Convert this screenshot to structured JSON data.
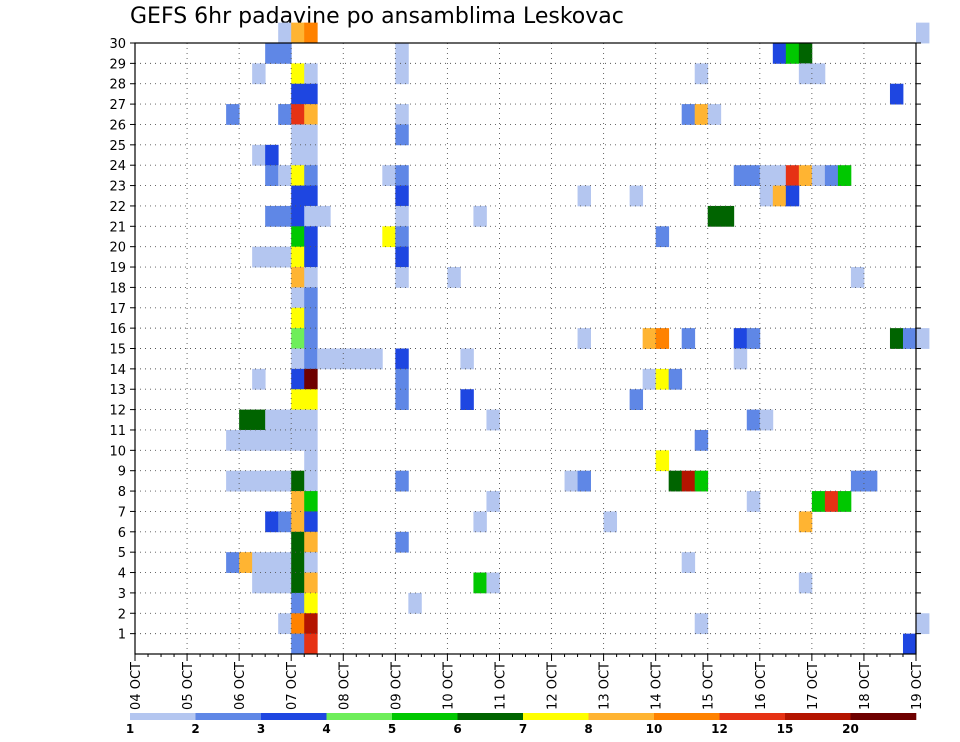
{
  "chart_data": {
    "type": "heatmap",
    "title": "GEFS 6hr padavine po ansamblima Leskovac",
    "xlabel": "",
    "ylabel": "",
    "x_ticks": [
      "04 OCT",
      "05 OCT",
      "06 OCT",
      "07 OCT",
      "08 OCT",
      "09 OCT",
      "10 OCT",
      "11 OCT",
      "12 OCT",
      "13 OCT",
      "14 OCT",
      "15 OCT",
      "16 OCT",
      "17 OCT",
      "18 OCT",
      "19 OCT"
    ],
    "x_range": [
      "04 OCT 00Z",
      "19 OCT 00Z"
    ],
    "x_step": "6hr",
    "y_ticks": [
      1,
      2,
      3,
      4,
      5,
      6,
      7,
      8,
      9,
      10,
      11,
      12,
      13,
      14,
      15,
      16,
      17,
      18,
      19,
      20,
      21,
      22,
      23,
      24,
      25,
      26,
      27,
      28,
      29,
      30
    ],
    "y_range": [
      0,
      30
    ],
    "grid": true,
    "legend": {
      "position": "bottom",
      "labels": [
        "1",
        "2",
        "3",
        "4",
        "5",
        "6",
        "7",
        "8",
        "10",
        "12",
        "15",
        "20"
      ],
      "colors": [
        "#b4c6f0",
        "#5f87e6",
        "#1e46e1",
        "#6eee5a",
        "#00c800",
        "#006400",
        "#ffff00",
        "#ffb432",
        "#ff8200",
        "#e63214",
        "#b41400",
        "#6e0000"
      ]
    },
    "color_bins_mm": [
      1,
      2,
      3,
      4,
      5,
      6,
      7,
      8,
      10,
      12,
      15,
      20
    ],
    "values": [
      [
        30,
        11,
        1
      ],
      [
        30,
        12,
        8
      ],
      [
        30,
        13,
        10
      ],
      [
        30,
        60,
        1
      ],
      [
        29,
        10,
        2
      ],
      [
        29,
        11,
        2
      ],
      [
        29,
        20,
        1
      ],
      [
        29,
        49,
        3
      ],
      [
        29,
        50,
        5
      ],
      [
        29,
        51,
        6
      ],
      [
        28,
        9,
        1
      ],
      [
        28,
        12,
        7
      ],
      [
        28,
        13,
        1
      ],
      [
        28,
        20,
        1
      ],
      [
        28,
        43,
        1
      ],
      [
        28,
        51,
        1
      ],
      [
        28,
        52,
        1
      ],
      [
        27,
        12,
        3
      ],
      [
        27,
        13,
        3
      ],
      [
        27,
        58,
        3
      ],
      [
        26,
        7,
        2
      ],
      [
        26,
        11,
        2
      ],
      [
        26,
        12,
        12
      ],
      [
        26,
        13,
        9
      ],
      [
        26,
        20,
        1
      ],
      [
        26,
        42,
        2
      ],
      [
        26,
        43,
        8
      ],
      [
        26,
        44,
        1
      ],
      [
        25,
        12,
        1
      ],
      [
        25,
        13,
        1
      ],
      [
        25,
        20,
        2
      ],
      [
        24,
        9,
        1
      ],
      [
        24,
        10,
        3
      ],
      [
        24,
        12,
        1
      ],
      [
        24,
        13,
        1
      ],
      [
        23,
        10,
        2
      ],
      [
        23,
        11,
        1
      ],
      [
        23,
        12,
        7
      ],
      [
        23,
        13,
        2
      ],
      [
        23,
        19,
        1
      ],
      [
        23,
        20,
        2
      ],
      [
        23,
        46,
        2
      ],
      [
        23,
        47,
        2
      ],
      [
        23,
        48,
        1
      ],
      [
        23,
        49,
        1
      ],
      [
        23,
        50,
        12
      ],
      [
        23,
        51,
        9
      ],
      [
        23,
        52,
        1
      ],
      [
        23,
        53,
        2
      ],
      [
        23,
        54,
        5
      ],
      [
        22,
        12,
        3
      ],
      [
        22,
        13,
        3
      ],
      [
        22,
        20,
        3
      ],
      [
        22,
        34,
        1
      ],
      [
        22,
        38,
        1
      ],
      [
        22,
        48,
        1
      ],
      [
        22,
        49,
        9
      ],
      [
        22,
        50,
        3
      ],
      [
        21,
        10,
        2
      ],
      [
        21,
        11,
        2
      ],
      [
        21,
        12,
        3
      ],
      [
        21,
        13,
        1
      ],
      [
        21,
        14,
        1
      ],
      [
        21,
        20,
        1
      ],
      [
        21,
        26,
        1
      ],
      [
        21,
        44,
        6
      ],
      [
        21,
        45,
        6
      ],
      [
        20,
        12,
        5
      ],
      [
        20,
        13,
        3
      ],
      [
        20,
        19,
        7
      ],
      [
        20,
        20,
        2
      ],
      [
        20,
        40,
        2
      ],
      [
        19,
        9,
        1
      ],
      [
        19,
        10,
        1
      ],
      [
        19,
        11,
        1
      ],
      [
        19,
        12,
        7
      ],
      [
        19,
        13,
        3
      ],
      [
        19,
        20,
        3
      ],
      [
        18,
        12,
        8
      ],
      [
        18,
        13,
        1
      ],
      [
        18,
        20,
        1
      ],
      [
        18,
        24,
        1
      ],
      [
        18,
        55,
        1
      ],
      [
        17,
        12,
        1
      ],
      [
        17,
        13,
        2
      ],
      [
        16,
        12,
        7
      ],
      [
        16,
        13,
        2
      ],
      [
        15,
        12,
        4
      ],
      [
        15,
        13,
        2
      ],
      [
        15,
        34,
        1
      ],
      [
        15,
        39,
        9
      ],
      [
        15,
        40,
        11
      ],
      [
        15,
        42,
        2
      ],
      [
        15,
        46,
        3
      ],
      [
        15,
        47,
        2
      ],
      [
        15,
        58,
        6
      ],
      [
        15,
        59,
        2
      ],
      [
        15,
        60,
        1
      ],
      [
        14,
        12,
        1
      ],
      [
        14,
        13,
        2
      ],
      [
        14,
        14,
        1
      ],
      [
        14,
        15,
        1
      ],
      [
        14,
        16,
        1
      ],
      [
        14,
        17,
        1
      ],
      [
        14,
        18,
        1
      ],
      [
        14,
        20,
        3
      ],
      [
        14,
        25,
        1
      ],
      [
        14,
        46,
        1
      ],
      [
        13,
        9,
        1
      ],
      [
        13,
        12,
        3
      ],
      [
        13,
        13,
        20
      ],
      [
        13,
        20,
        2
      ],
      [
        13,
        39,
        1
      ],
      [
        13,
        40,
        7
      ],
      [
        13,
        41,
        2
      ],
      [
        12,
        12,
        7
      ],
      [
        12,
        13,
        7
      ],
      [
        12,
        20,
        2
      ],
      [
        12,
        25,
        3
      ],
      [
        12,
        38,
        2
      ],
      [
        11,
        8,
        6
      ],
      [
        11,
        9,
        6
      ],
      [
        11,
        10,
        1
      ],
      [
        11,
        11,
        1
      ],
      [
        11,
        12,
        1
      ],
      [
        11,
        13,
        1
      ],
      [
        11,
        27,
        1
      ],
      [
        11,
        47,
        2
      ],
      [
        11,
        48,
        1
      ],
      [
        10,
        7,
        1
      ],
      [
        10,
        8,
        1
      ],
      [
        10,
        9,
        1
      ],
      [
        10,
        10,
        1
      ],
      [
        10,
        11,
        1
      ],
      [
        10,
        12,
        1
      ],
      [
        10,
        13,
        1
      ],
      [
        10,
        43,
        2
      ],
      [
        9,
        13,
        1
      ],
      [
        9,
        40,
        7
      ],
      [
        8,
        7,
        1
      ],
      [
        8,
        8,
        1
      ],
      [
        8,
        9,
        1
      ],
      [
        8,
        10,
        1
      ],
      [
        8,
        11,
        1
      ],
      [
        8,
        12,
        6
      ],
      [
        8,
        13,
        1
      ],
      [
        8,
        20,
        2
      ],
      [
        8,
        33,
        1
      ],
      [
        8,
        34,
        2
      ],
      [
        8,
        41,
        6
      ],
      [
        8,
        42,
        15
      ],
      [
        8,
        43,
        5
      ],
      [
        8,
        55,
        2
      ],
      [
        8,
        56,
        2
      ],
      [
        7,
        12,
        9
      ],
      [
        7,
        13,
        5
      ],
      [
        7,
        27,
        1
      ],
      [
        7,
        47,
        1
      ],
      [
        7,
        52,
        5
      ],
      [
        7,
        53,
        12
      ],
      [
        7,
        54,
        5
      ],
      [
        6,
        10,
        3
      ],
      [
        6,
        11,
        2
      ],
      [
        6,
        12,
        9
      ],
      [
        6,
        13,
        3
      ],
      [
        6,
        26,
        1
      ],
      [
        6,
        36,
        1
      ],
      [
        6,
        51,
        9
      ],
      [
        5,
        12,
        6
      ],
      [
        5,
        13,
        8
      ],
      [
        5,
        20,
        2
      ],
      [
        4,
        7,
        2
      ],
      [
        4,
        8,
        8
      ],
      [
        4,
        9,
        1
      ],
      [
        4,
        10,
        1
      ],
      [
        4,
        11,
        1
      ],
      [
        4,
        12,
        6
      ],
      [
        4,
        13,
        1
      ],
      [
        4,
        42,
        1
      ],
      [
        3,
        9,
        1
      ],
      [
        3,
        10,
        1
      ],
      [
        3,
        11,
        1
      ],
      [
        3,
        12,
        6
      ],
      [
        3,
        13,
        8
      ],
      [
        3,
        26,
        5
      ],
      [
        3,
        27,
        1
      ],
      [
        3,
        51,
        1
      ],
      [
        2,
        12,
        2
      ],
      [
        2,
        13,
        7
      ],
      [
        2,
        21,
        1
      ],
      [
        1,
        11,
        1
      ],
      [
        1,
        12,
        10
      ],
      [
        1,
        13,
        15
      ],
      [
        1,
        43,
        1
      ],
      [
        1,
        60,
        1
      ],
      [
        0,
        12,
        2
      ],
      [
        0,
        13,
        12
      ],
      [
        0,
        59,
        3
      ]
    ]
  }
}
